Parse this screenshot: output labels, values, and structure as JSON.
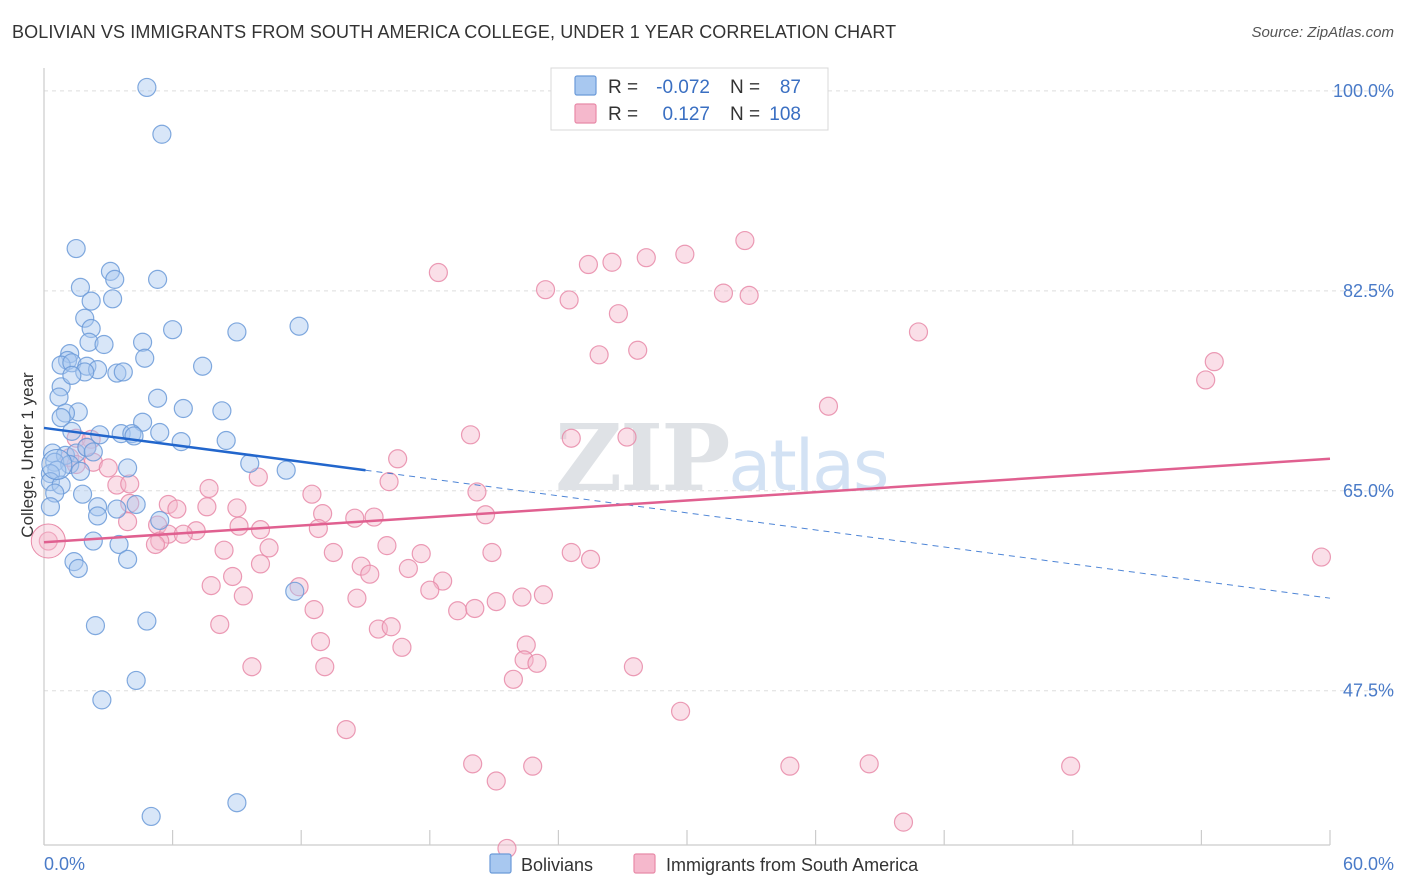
{
  "header": {
    "title": "BOLIVIAN VS IMMIGRANTS FROM SOUTH AMERICA COLLEGE, UNDER 1 YEAR CORRELATION CHART",
    "source": "Source: ZipAtlas.com"
  },
  "watermark": "ZIPatlas",
  "chart_data": {
    "type": "scatter",
    "title": "BOLIVIAN VS IMMIGRANTS FROM SOUTH AMERICA COLLEGE, UNDER 1 YEAR CORRELATION CHART",
    "xlabel": "",
    "ylabel": "College, Under 1 year",
    "xlim": [
      0,
      60
    ],
    "ylim": [
      34,
      102
    ],
    "x_tick_labels": [
      "0.0%",
      "60.0%"
    ],
    "y_ticks": [
      47.5,
      65.0,
      82.5,
      100.0
    ],
    "y_tick_labels": [
      "47.5%",
      "65.0%",
      "82.5%",
      "100.0%"
    ],
    "grid": "horizontal dashed",
    "legend_placement": "top-center",
    "colors": {
      "bolivians_fill": "#a8c8f0",
      "bolivians_stroke": "#6b9ad8",
      "bolivians_line": "#2266cc",
      "immigrants_fill": "#f5b8cc",
      "immigrants_stroke": "#e88aa8",
      "immigrants_line": "#e06090",
      "tick_label": "#4a7bc8"
    },
    "stats": [
      {
        "r_label": "R =",
        "r_value": "-0.072",
        "n_label": "N =",
        "n_value": "87"
      },
      {
        "r_label": "R =",
        "r_value": "0.127",
        "n_label": "N =",
        "n_value": "108"
      }
    ],
    "series": [
      {
        "name": "Bolivians",
        "trend": {
          "x0": 0,
          "y0": 70.5,
          "x1": 15,
          "y1": 66.8,
          "x_dash_end": 60,
          "y_dash_end": 55.6
        },
        "points": [
          [
            4.8,
            100.3
          ],
          [
            5.5,
            96.2
          ],
          [
            1.5,
            86.2
          ],
          [
            3.1,
            84.2
          ],
          [
            5.3,
            83.5
          ],
          [
            1.7,
            82.8
          ],
          [
            3.3,
            83.5
          ],
          [
            2.2,
            81.6
          ],
          [
            3.2,
            81.8
          ],
          [
            1.9,
            80.1
          ],
          [
            2.2,
            79.2
          ],
          [
            6.0,
            79.1
          ],
          [
            9.0,
            78.9
          ],
          [
            11.9,
            79.4
          ],
          [
            2.1,
            78.0
          ],
          [
            2.8,
            77.8
          ],
          [
            4.6,
            78.0
          ],
          [
            1.2,
            77.0
          ],
          [
            1.1,
            76.4
          ],
          [
            4.7,
            76.6
          ],
          [
            0.8,
            76.0
          ],
          [
            1.3,
            76.2
          ],
          [
            2.0,
            75.9
          ],
          [
            2.5,
            75.6
          ],
          [
            1.9,
            75.4
          ],
          [
            3.4,
            75.3
          ],
          [
            3.7,
            75.4
          ],
          [
            7.4,
            75.9
          ],
          [
            0.8,
            74.1
          ],
          [
            1.3,
            75.1
          ],
          [
            0.7,
            73.2
          ],
          [
            5.3,
            73.1
          ],
          [
            1.6,
            71.9
          ],
          [
            1.0,
            71.8
          ],
          [
            6.5,
            72.2
          ],
          [
            8.3,
            72.0
          ],
          [
            0.8,
            71.4
          ],
          [
            4.6,
            71.0
          ],
          [
            1.3,
            70.2
          ],
          [
            2.6,
            69.9
          ],
          [
            3.6,
            70.0
          ],
          [
            4.1,
            70.0
          ],
          [
            4.2,
            69.8
          ],
          [
            5.4,
            70.1
          ],
          [
            6.4,
            69.3
          ],
          [
            8.5,
            69.4
          ],
          [
            0.4,
            68.3
          ],
          [
            1.0,
            68.1
          ],
          [
            1.5,
            68.3
          ],
          [
            2.0,
            68.8
          ],
          [
            2.3,
            68.4
          ],
          [
            0.5,
            67.5
          ],
          [
            1.2,
            67.3
          ],
          [
            0.6,
            66.8
          ],
          [
            0.3,
            66.5
          ],
          [
            1.7,
            66.7
          ],
          [
            3.9,
            67.0
          ],
          [
            9.6,
            67.4
          ],
          [
            11.3,
            66.8
          ],
          [
            0.3,
            65.8
          ],
          [
            0.8,
            65.5
          ],
          [
            0.5,
            64.8
          ],
          [
            1.8,
            64.7
          ],
          [
            0.3,
            63.6
          ],
          [
            2.5,
            63.6
          ],
          [
            4.3,
            63.8
          ],
          [
            3.4,
            63.4
          ],
          [
            2.5,
            62.8
          ],
          [
            5.4,
            62.4
          ],
          [
            2.3,
            60.6
          ],
          [
            3.5,
            60.3
          ],
          [
            3.9,
            59.0
          ],
          [
            1.4,
            58.8
          ],
          [
            1.6,
            58.2
          ],
          [
            11.7,
            56.2
          ],
          [
            2.4,
            53.2
          ],
          [
            4.8,
            53.6
          ],
          [
            4.3,
            48.4
          ],
          [
            2.7,
            46.7
          ],
          [
            5.0,
            36.5
          ],
          [
            9.0,
            37.7
          ]
        ]
      },
      {
        "name": "Immigrants from South America",
        "trend": {
          "x0": 0,
          "y0": 60.5,
          "x1": 60,
          "y1": 67.8
        },
        "points": [
          [
            35.8,
            100.2
          ],
          [
            32.7,
            86.9
          ],
          [
            29.9,
            85.7
          ],
          [
            28.1,
            85.4
          ],
          [
            26.5,
            85.0
          ],
          [
            25.4,
            84.8
          ],
          [
            18.4,
            84.1
          ],
          [
            23.4,
            82.6
          ],
          [
            31.7,
            82.3
          ],
          [
            32.9,
            82.1
          ],
          [
            24.5,
            81.7
          ],
          [
            26.8,
            80.5
          ],
          [
            40.8,
            78.9
          ],
          [
            27.7,
            77.3
          ],
          [
            25.9,
            76.9
          ],
          [
            54.6,
            76.3
          ],
          [
            54.2,
            74.7
          ],
          [
            36.6,
            72.4
          ],
          [
            19.9,
            69.9
          ],
          [
            24.6,
            69.6
          ],
          [
            27.2,
            69.7
          ],
          [
            1.5,
            69.6
          ],
          [
            2.2,
            69.5
          ],
          [
            2.0,
            68.8
          ],
          [
            1.2,
            67.9
          ],
          [
            2.3,
            67.5
          ],
          [
            1.5,
            67.3
          ],
          [
            3.0,
            67.0
          ],
          [
            16.5,
            67.8
          ],
          [
            10.0,
            66.2
          ],
          [
            16.1,
            65.8
          ],
          [
            3.4,
            65.5
          ],
          [
            4.0,
            65.6
          ],
          [
            7.7,
            65.2
          ],
          [
            12.5,
            64.7
          ],
          [
            20.2,
            64.9
          ],
          [
            4.0,
            63.9
          ],
          [
            5.8,
            63.8
          ],
          [
            9.0,
            63.5
          ],
          [
            7.6,
            63.6
          ],
          [
            13.0,
            63.0
          ],
          [
            6.2,
            63.4
          ],
          [
            20.6,
            62.9
          ],
          [
            15.4,
            62.7
          ],
          [
            14.5,
            62.6
          ],
          [
            3.9,
            62.3
          ],
          [
            5.3,
            62.0
          ],
          [
            5.8,
            61.2
          ],
          [
            7.1,
            61.5
          ],
          [
            9.1,
            61.9
          ],
          [
            10.1,
            61.6
          ],
          [
            12.8,
            61.7
          ],
          [
            6.5,
            61.2
          ],
          [
            5.4,
            60.6
          ],
          [
            5.2,
            60.3
          ],
          [
            10.5,
            60.0
          ],
          [
            8.4,
            59.8
          ],
          [
            13.5,
            59.6
          ],
          [
            16.0,
            60.2
          ],
          [
            17.6,
            59.5
          ],
          [
            20.9,
            59.6
          ],
          [
            24.6,
            59.6
          ],
          [
            25.5,
            59.0
          ],
          [
            10.1,
            58.6
          ],
          [
            14.8,
            58.4
          ],
          [
            15.2,
            57.7
          ],
          [
            17.0,
            58.2
          ],
          [
            18.6,
            57.1
          ],
          [
            8.8,
            57.5
          ],
          [
            7.8,
            56.7
          ],
          [
            11.9,
            56.6
          ],
          [
            18.0,
            56.3
          ],
          [
            9.3,
            55.8
          ],
          [
            14.6,
            55.6
          ],
          [
            22.3,
            55.7
          ],
          [
            23.3,
            55.9
          ],
          [
            19.3,
            54.5
          ],
          [
            12.6,
            54.6
          ],
          [
            8.2,
            53.3
          ],
          [
            15.6,
            52.9
          ],
          [
            16.2,
            53.1
          ],
          [
            20.1,
            54.7
          ],
          [
            21.1,
            55.3
          ],
          [
            12.9,
            51.8
          ],
          [
            16.7,
            51.3
          ],
          [
            22.5,
            51.5
          ],
          [
            9.7,
            49.6
          ],
          [
            13.1,
            49.6
          ],
          [
            22.4,
            50.2
          ],
          [
            23.0,
            49.9
          ],
          [
            27.5,
            49.6
          ],
          [
            21.9,
            48.5
          ],
          [
            29.7,
            45.7
          ],
          [
            14.1,
            44.1
          ],
          [
            20.0,
            41.1
          ],
          [
            22.8,
            40.9
          ],
          [
            34.8,
            40.9
          ],
          [
            38.5,
            41.1
          ],
          [
            47.9,
            40.9
          ],
          [
            21.1,
            39.6
          ],
          [
            40.1,
            36.0
          ],
          [
            21.6,
            33.7
          ],
          [
            59.6,
            59.2
          ],
          [
            0.2,
            60.6
          ]
        ]
      }
    ]
  },
  "bottom_legend": {
    "items": [
      "Bolivians",
      "Immigrants from South America"
    ]
  }
}
